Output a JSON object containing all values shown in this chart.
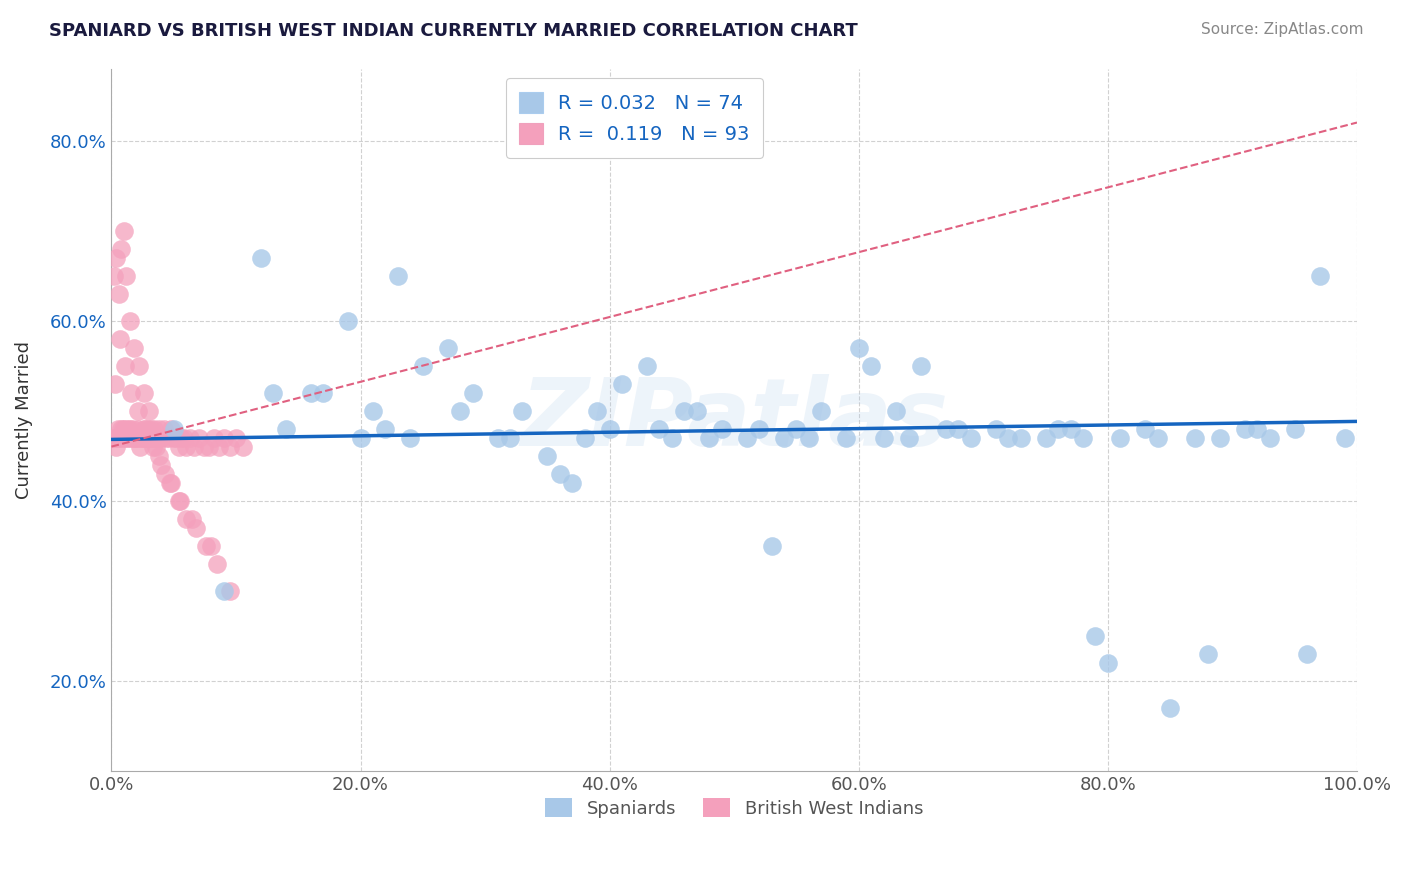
{
  "title": "SPANIARD VS BRITISH WEST INDIAN CURRENTLY MARRIED CORRELATION CHART",
  "source": "Source: ZipAtlas.com",
  "ylabel": "Currently Married",
  "xmin": 0.0,
  "xmax": 1.0,
  "ymin": 0.1,
  "ymax": 0.88,
  "blue_R": 0.032,
  "blue_N": 74,
  "pink_R": 0.119,
  "pink_N": 93,
  "blue_color": "#a8c8e8",
  "pink_color": "#f4a0bc",
  "blue_line_color": "#1565c0",
  "pink_line_color": "#e06080",
  "watermark": "ZIPatlas",
  "xticks": [
    0.0,
    0.2,
    0.4,
    0.6,
    0.8,
    1.0
  ],
  "xtick_labels": [
    "0.0%",
    "20.0%",
    "40.0%",
    "60.0%",
    "80.0%",
    "100.0%"
  ],
  "yticks": [
    0.2,
    0.4,
    0.6,
    0.8
  ],
  "ytick_labels": [
    "20.0%",
    "40.0%",
    "60.0%",
    "80.0%"
  ],
  "blue_scatter_x": [
    0.05,
    0.09,
    0.13,
    0.17,
    0.19,
    0.21,
    0.23,
    0.25,
    0.27,
    0.29,
    0.31,
    0.33,
    0.35,
    0.37,
    0.39,
    0.41,
    0.43,
    0.45,
    0.47,
    0.49,
    0.51,
    0.53,
    0.55,
    0.57,
    0.59,
    0.61,
    0.63,
    0.65,
    0.67,
    0.69,
    0.71,
    0.73,
    0.75,
    0.77,
    0.79,
    0.81,
    0.83,
    0.85,
    0.87,
    0.89,
    0.91,
    0.93,
    0.95,
    0.97,
    0.99,
    0.12,
    0.16,
    0.2,
    0.24,
    0.28,
    0.32,
    0.36,
    0.4,
    0.44,
    0.48,
    0.52,
    0.56,
    0.6,
    0.64,
    0.68,
    0.72,
    0.76,
    0.8,
    0.84,
    0.88,
    0.92,
    0.96,
    0.14,
    0.22,
    0.38,
    0.46,
    0.54,
    0.62,
    0.78
  ],
  "blue_scatter_y": [
    0.48,
    0.3,
    0.52,
    0.52,
    0.6,
    0.5,
    0.65,
    0.55,
    0.57,
    0.52,
    0.47,
    0.5,
    0.45,
    0.42,
    0.5,
    0.53,
    0.55,
    0.47,
    0.5,
    0.48,
    0.47,
    0.35,
    0.48,
    0.5,
    0.47,
    0.55,
    0.5,
    0.55,
    0.48,
    0.47,
    0.48,
    0.47,
    0.47,
    0.48,
    0.25,
    0.47,
    0.48,
    0.17,
    0.47,
    0.47,
    0.48,
    0.47,
    0.48,
    0.65,
    0.47,
    0.67,
    0.52,
    0.47,
    0.47,
    0.5,
    0.47,
    0.43,
    0.48,
    0.48,
    0.47,
    0.48,
    0.47,
    0.57,
    0.47,
    0.48,
    0.47,
    0.48,
    0.22,
    0.47,
    0.23,
    0.48,
    0.23,
    0.48,
    0.48,
    0.47,
    0.5,
    0.47,
    0.47,
    0.47
  ],
  "pink_scatter_x": [
    0.002,
    0.003,
    0.004,
    0.005,
    0.006,
    0.007,
    0.008,
    0.009,
    0.01,
    0.011,
    0.012,
    0.013,
    0.014,
    0.015,
    0.016,
    0.017,
    0.018,
    0.019,
    0.02,
    0.021,
    0.022,
    0.023,
    0.024,
    0.025,
    0.026,
    0.027,
    0.028,
    0.029,
    0.03,
    0.031,
    0.032,
    0.033,
    0.034,
    0.035,
    0.036,
    0.037,
    0.038,
    0.039,
    0.04,
    0.042,
    0.044,
    0.046,
    0.048,
    0.05,
    0.052,
    0.054,
    0.056,
    0.058,
    0.06,
    0.063,
    0.066,
    0.07,
    0.074,
    0.078,
    0.082,
    0.086,
    0.09,
    0.095,
    0.1,
    0.106,
    0.002,
    0.004,
    0.006,
    0.008,
    0.01,
    0.012,
    0.015,
    0.018,
    0.022,
    0.026,
    0.03,
    0.034,
    0.038,
    0.043,
    0.048,
    0.054,
    0.06,
    0.068,
    0.076,
    0.085,
    0.095,
    0.003,
    0.007,
    0.011,
    0.016,
    0.021,
    0.027,
    0.033,
    0.04,
    0.047,
    0.055,
    0.065,
    0.08
  ],
  "pink_scatter_y": [
    0.47,
    0.47,
    0.46,
    0.48,
    0.47,
    0.47,
    0.48,
    0.48,
    0.47,
    0.48,
    0.47,
    0.48,
    0.47,
    0.48,
    0.47,
    0.48,
    0.47,
    0.47,
    0.47,
    0.48,
    0.47,
    0.46,
    0.47,
    0.47,
    0.48,
    0.47,
    0.47,
    0.48,
    0.47,
    0.47,
    0.48,
    0.47,
    0.48,
    0.47,
    0.46,
    0.47,
    0.48,
    0.47,
    0.47,
    0.48,
    0.47,
    0.47,
    0.48,
    0.47,
    0.47,
    0.46,
    0.47,
    0.47,
    0.46,
    0.47,
    0.46,
    0.47,
    0.46,
    0.46,
    0.47,
    0.46,
    0.47,
    0.46,
    0.47,
    0.46,
    0.65,
    0.67,
    0.63,
    0.68,
    0.7,
    0.65,
    0.6,
    0.57,
    0.55,
    0.52,
    0.5,
    0.47,
    0.45,
    0.43,
    0.42,
    0.4,
    0.38,
    0.37,
    0.35,
    0.33,
    0.3,
    0.53,
    0.58,
    0.55,
    0.52,
    0.5,
    0.48,
    0.46,
    0.44,
    0.42,
    0.4,
    0.38,
    0.35
  ],
  "blue_trend_x0": 0.0,
  "blue_trend_x1": 1.0,
  "blue_trend_y0": 0.468,
  "blue_trend_y1": 0.488,
  "pink_trend_x0": 0.0,
  "pink_trend_x1": 1.0,
  "pink_trend_y0": 0.46,
  "pink_trend_y1": 0.82
}
